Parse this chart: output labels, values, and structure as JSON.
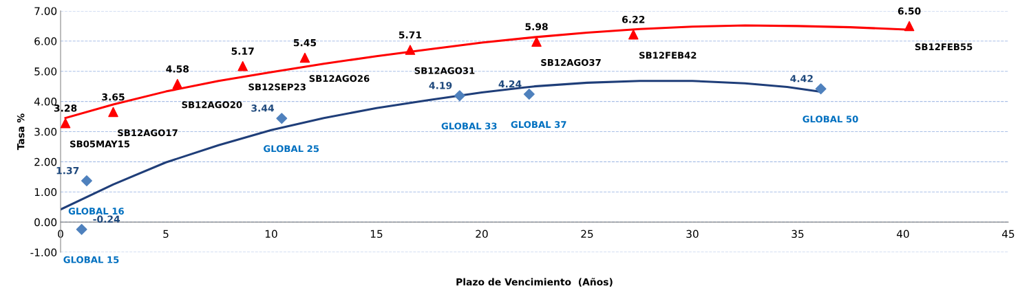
{
  "chart_data": {
    "type": "scatter",
    "xlabel": "Plazo de Vencimiento  (Años)",
    "ylabel": "Tasa %",
    "xlim": [
      0,
      45
    ],
    "xticks": [
      0,
      5,
      10,
      15,
      20,
      25,
      30,
      35,
      40,
      45
    ],
    "ylim": [
      -1,
      7
    ],
    "yticks": [
      {
        "value": -1,
        "label": "-1.00"
      },
      {
        "value": 0,
        "label": "0.00"
      },
      {
        "value": 1,
        "label": "1.00"
      },
      {
        "value": 2,
        "label": "2.00"
      },
      {
        "value": 3,
        "label": "3.00"
      },
      {
        "value": 4,
        "label": "4.00"
      },
      {
        "value": 5,
        "label": "5.00"
      },
      {
        "value": 6,
        "label": "6.00"
      },
      {
        "value": 7,
        "label": "7.00"
      }
    ],
    "grid": "y",
    "legend": false,
    "series": [
      {
        "marker": "triangle",
        "color": "#ff0000",
        "x": [
          0.23,
          2.5,
          5.55,
          8.65,
          11.6,
          16.6,
          22.6,
          27.2,
          40.3
        ],
        "values": [
          3.28,
          3.65,
          4.58,
          5.17,
          5.45,
          5.71,
          5.98,
          6.22,
          6.5
        ],
        "value_labels": [
          "3.28",
          "3.65",
          "4.58",
          "5.17",
          "5.45",
          "5.71",
          "5.98",
          "6.22",
          "6.50"
        ]
      },
      {
        "marker": "diamond",
        "color": "#4f81bd",
        "x": [
          1.0,
          1.24,
          10.5,
          18.95,
          22.25,
          36.1
        ],
        "values": [
          -0.24,
          1.37,
          3.44,
          4.19,
          4.24,
          4.42
        ],
        "value_labels": [
          "-0.24",
          "1.37",
          "3.44",
          "4.19",
          "4.24",
          "4.42"
        ]
      },
      {
        "type": "line",
        "marker": "none",
        "line_style": "solid",
        "color": "#ff0000",
        "x": [
          0.23,
          2.5,
          5,
          7.5,
          10,
          12.5,
          15,
          17.5,
          20,
          22.5,
          25,
          27.5,
          30,
          32.5,
          35,
          37.5,
          40.3
        ],
        "values": [
          3.45,
          3.9,
          4.33,
          4.68,
          4.97,
          5.25,
          5.5,
          5.73,
          5.95,
          6.13,
          6.28,
          6.4,
          6.48,
          6.52,
          6.5,
          6.46,
          6.38
        ]
      },
      {
        "type": "line",
        "marker": "none",
        "line_style": "solid",
        "color": "#1f3e79",
        "x": [
          0,
          2.5,
          5,
          7.5,
          10,
          12.5,
          15,
          17.5,
          20,
          22.5,
          25,
          27.5,
          30,
          32.5,
          34.5,
          36.1
        ],
        "values": [
          0.42,
          1.25,
          1.98,
          2.55,
          3.05,
          3.45,
          3.78,
          4.05,
          4.3,
          4.5,
          4.62,
          4.68,
          4.68,
          4.6,
          4.48,
          4.32
        ]
      }
    ],
    "annotations": [
      "SB05MAY15",
      "SB12AGO17",
      "SB12AGO20",
      "SB12SEP23",
      "SB12AGO26",
      "SB12AGO31",
      "SB12AGO37",
      "SB12FEB42",
      "SB12FEB55",
      "GLOBAL 15",
      "GLOBAL 16",
      "GLOBAL 25",
      "GLOBAL 33",
      "GLOBAL 37",
      "GLOBAL 50"
    ]
  }
}
